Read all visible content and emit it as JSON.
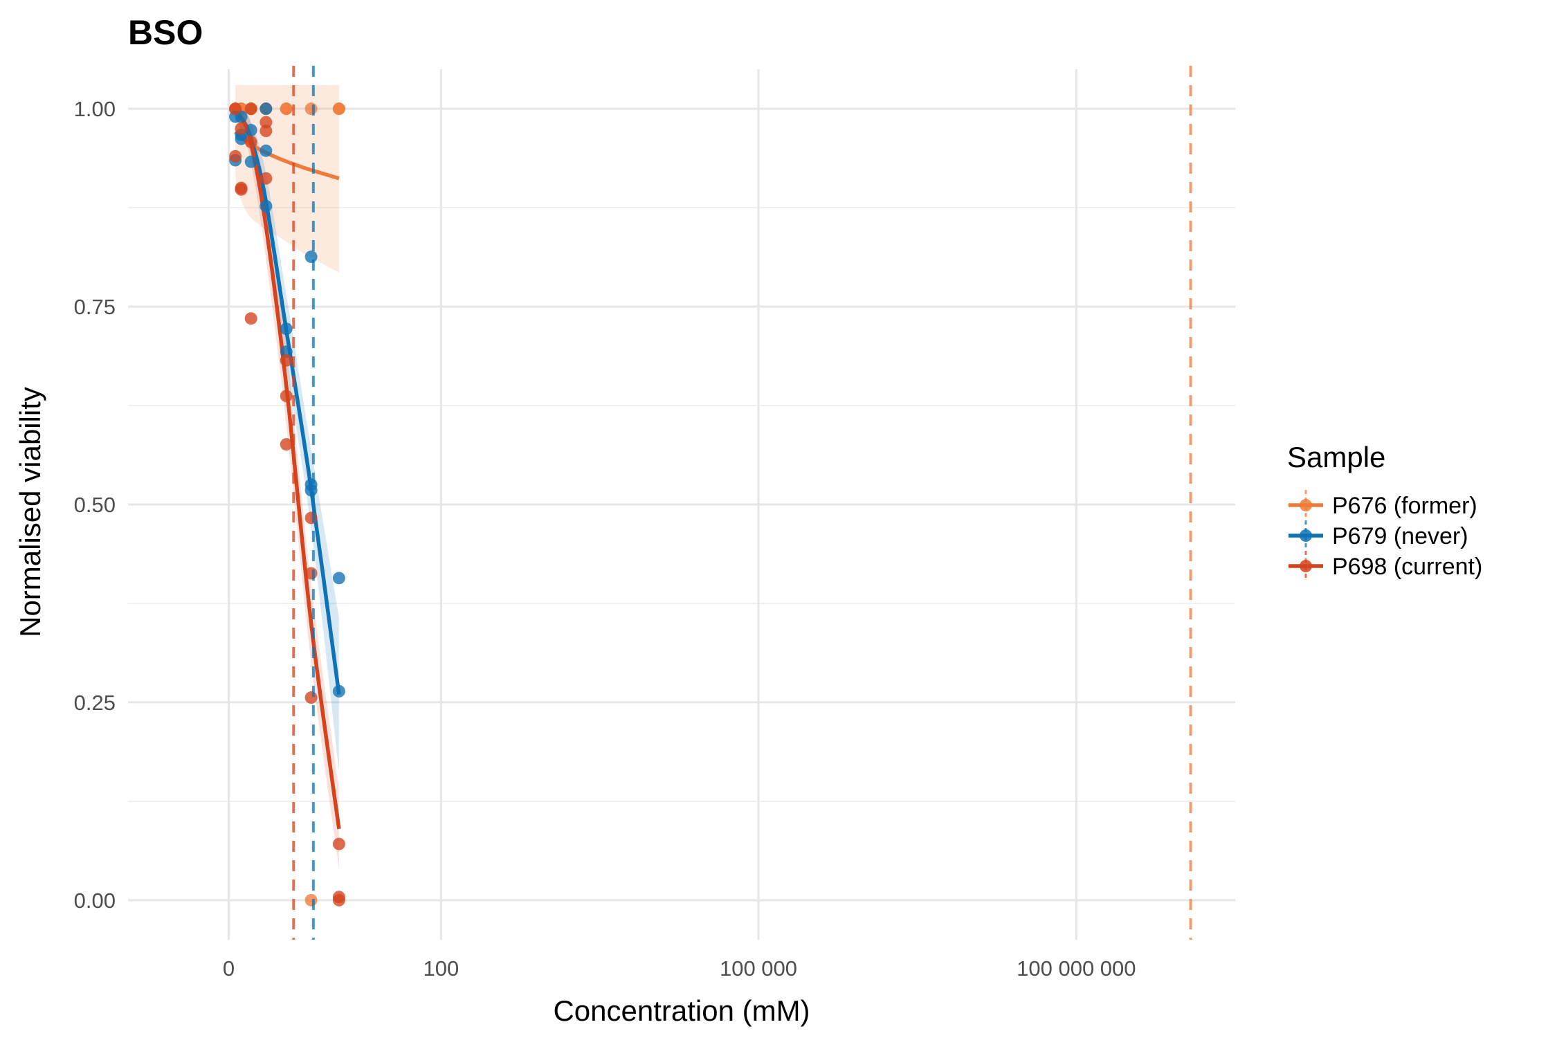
{
  "chart_data": {
    "type": "scatter",
    "title": "BSO",
    "xlabel": "Concentration (mM)",
    "ylabel": "Normalised viability",
    "x_scale": "log10-pseudo",
    "xlim_log10": [
      -0.95,
      9.5
    ],
    "ylim": [
      -0.05,
      1.05
    ],
    "x_ticks": [
      {
        "value": 0,
        "label": "0"
      },
      {
        "value": 100,
        "label": "100"
      },
      {
        "value": 100000,
        "label": "100 000"
      },
      {
        "value": 100000000,
        "label": "100 000 000"
      }
    ],
    "y_ticks": [
      {
        "value": 0,
        "label": "0.00"
      },
      {
        "value": 0.25,
        "label": "0.25"
      },
      {
        "value": 0.5,
        "label": "0.50"
      },
      {
        "value": 0.75,
        "label": "0.75"
      },
      {
        "value": 1,
        "label": "1.00"
      }
    ],
    "grid": true,
    "legend": {
      "title": "Sample",
      "position": "right"
    },
    "series": [
      {
        "name": "P676 (former)",
        "color": "#ef7b3a",
        "x": [
          0.156,
          0.313,
          0.625,
          1.25,
          2.5,
          5,
          10,
          0.156,
          0.313,
          0.625,
          1.25,
          2.5,
          5,
          10
        ],
        "y": [
          1.0,
          1.0,
          1.0,
          1.0,
          1.0,
          1.0,
          1.0,
          1.0,
          1.0,
          1.0,
          1.0,
          1.0,
          0.0,
          1.0
        ],
        "fit_x": [
          0.156,
          0.25,
          0.5,
          1,
          2,
          4,
          10
        ],
        "fit_y": [
          0.971,
          0.966,
          0.958,
          0.948,
          0.937,
          0.926,
          0.912
        ],
        "band_lower": [
          0.912,
          0.892,
          0.868,
          0.852,
          0.838,
          0.818,
          0.793
        ],
        "band_upper": [
          1.03,
          1.03,
          1.03,
          1.03,
          1.03,
          1.03,
          1.03
        ],
        "ic50": 1200000000
      },
      {
        "name": "P679 (never)",
        "color": "#0e72b5",
        "x": [
          0.156,
          0.156,
          0.313,
          0.313,
          0.313,
          0.625,
          0.625,
          1.25,
          1.25,
          1.25,
          2.5,
          2.5,
          5,
          5,
          5,
          10,
          10
        ],
        "y": [
          0.99,
          0.935,
          0.99,
          0.967,
          0.962,
          0.973,
          0.933,
          1.0,
          0.947,
          0.877,
          0.722,
          0.693,
          0.525,
          0.518,
          0.813,
          0.407,
          0.264
        ],
        "fit_x": [
          0.156,
          0.3,
          0.6,
          1.2,
          2.5,
          5,
          10
        ],
        "fit_y": [
          0.997,
          0.99,
          0.965,
          0.89,
          0.72,
          0.52,
          0.26
        ],
        "band_lower": [
          0.985,
          0.975,
          0.945,
          0.85,
          0.675,
          0.47,
          0.162
        ],
        "band_upper": [
          1.0,
          1.0,
          0.985,
          0.925,
          0.765,
          0.57,
          0.357
        ],
        "ic50": 5.3
      },
      {
        "name": "P698 (current)",
        "color": "#d4431d",
        "x": [
          0.156,
          0.156,
          0.313,
          0.313,
          0.313,
          0.625,
          0.625,
          0.625,
          1.25,
          1.25,
          1.25,
          2.5,
          2.5,
          2.5,
          5,
          5,
          5,
          10,
          10,
          10
        ],
        "y": [
          1.0,
          0.94,
          0.975,
          0.9,
          0.898,
          1.0,
          0.958,
          0.735,
          0.983,
          0.972,
          0.912,
          0.682,
          0.637,
          0.576,
          0.483,
          0.413,
          0.256,
          0.071,
          0.004,
          0.0
        ],
        "fit_x": [
          0.156,
          0.3,
          0.6,
          1.2,
          2.5,
          5,
          10
        ],
        "fit_y": [
          1.0,
          0.99,
          0.96,
          0.86,
          0.65,
          0.35,
          0.09
        ],
        "band_lower": [
          0.99,
          0.975,
          0.935,
          0.82,
          0.6,
          0.3,
          0.04
        ],
        "band_upper": [
          1.01,
          1.0,
          0.985,
          0.9,
          0.7,
          0.4,
          0.14
        ],
        "ic50": 3.1
      }
    ]
  }
}
